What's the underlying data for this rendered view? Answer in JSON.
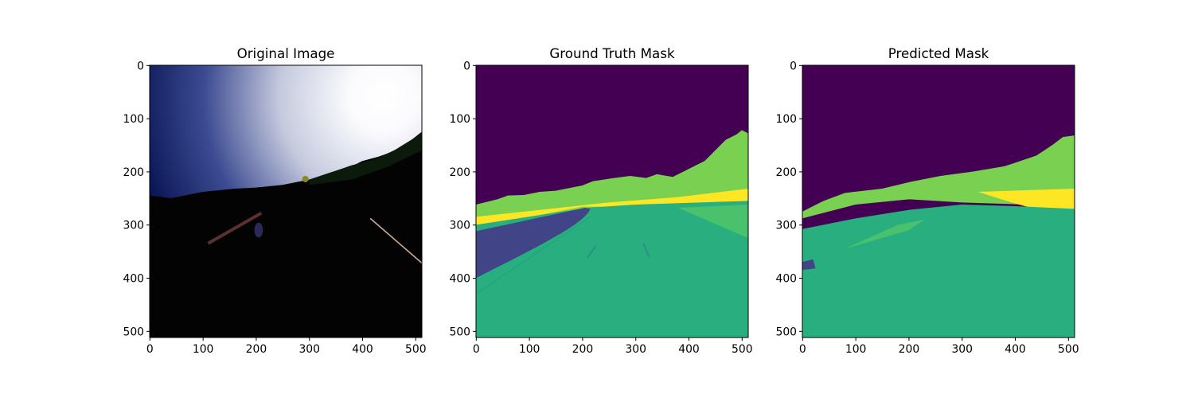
{
  "chart_data": [
    {
      "type": "image",
      "title": "Original Image",
      "xlim": [
        -0.5,
        511.5
      ],
      "ylim": [
        511.5,
        -0.5
      ],
      "xticks": [
        0,
        100,
        200,
        300,
        400,
        500
      ],
      "yticks": [
        0,
        100,
        200,
        300,
        400,
        500
      ]
    },
    {
      "type": "image",
      "title": "Ground Truth Mask",
      "xlim": [
        -0.5,
        511.5
      ],
      "ylim": [
        511.5,
        -0.5
      ],
      "xticks": [
        0,
        100,
        200,
        300,
        400,
        500
      ],
      "yticks": [
        0,
        100,
        200,
        300,
        400,
        500
      ]
    },
    {
      "type": "image",
      "title": "Predicted Mask",
      "xlim": [
        -0.5,
        511.5
      ],
      "ylim": [
        511.5,
        -0.5
      ],
      "xticks": [
        0,
        100,
        200,
        300,
        400,
        500
      ],
      "yticks": [
        0,
        100,
        200,
        300,
        400,
        500
      ]
    }
  ]
}
